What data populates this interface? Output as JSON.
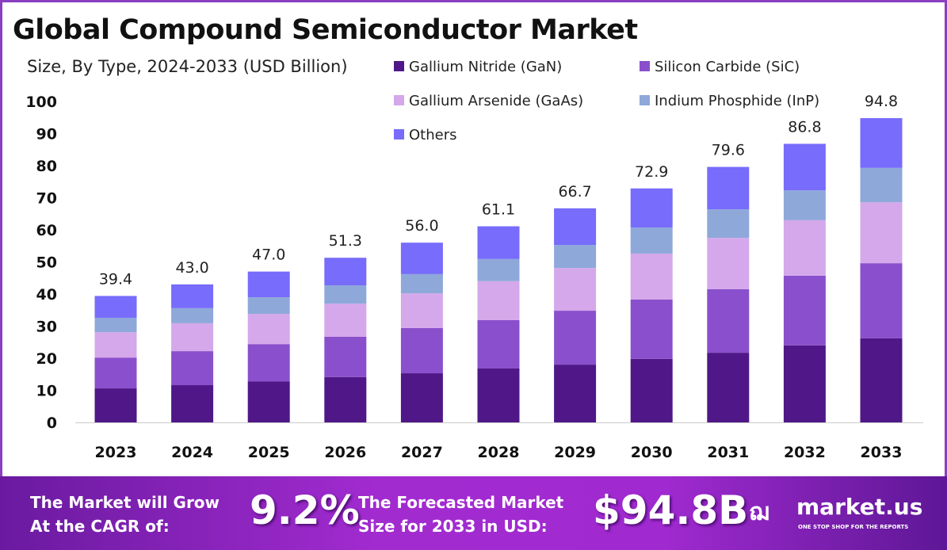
{
  "chart_data": {
    "type": "bar",
    "stacked": true,
    "title": "Global Compound Semiconductor Market",
    "subtitle": "Size, By Type, 2024-2033 (USD Billion)",
    "categories": [
      "2023",
      "2024",
      "2025",
      "2026",
      "2027",
      "2028",
      "2029",
      "2030",
      "2031",
      "2032",
      "2033"
    ],
    "totals": [
      "39.4",
      "43.0",
      "47.0",
      "51.3",
      "56.0",
      "61.1",
      "66.7",
      "72.9",
      "79.6",
      "86.8",
      "94.8"
    ],
    "series": [
      {
        "name": "Gallium Nitride (GaN)",
        "color": "#4f1787",
        "values": [
          10.6,
          11.6,
          12.8,
          14.1,
          15.3,
          16.8,
          18.0,
          19.8,
          21.7,
          24.0,
          26.2
        ]
      },
      {
        "name": "Silicon Carbide (SiC)",
        "color": "#8a4fcc",
        "values": [
          9.6,
          10.6,
          11.6,
          12.6,
          14.1,
          15.1,
          16.8,
          18.5,
          19.8,
          21.7,
          23.4
        ]
      },
      {
        "name": "Gallium Arsenide (GaAs)",
        "color": "#d4a8ea",
        "values": [
          7.9,
          8.7,
          9.4,
          10.3,
          10.8,
          12.1,
          13.3,
          14.3,
          16.0,
          17.3,
          19.0
        ]
      },
      {
        "name": "Indium Phosphide (InP)",
        "color": "#8ea8da",
        "values": [
          4.5,
          4.7,
          5.2,
          5.7,
          6.0,
          6.9,
          7.2,
          8.1,
          8.9,
          9.3,
          10.7
        ]
      },
      {
        "name": "Others",
        "color": "#776cfb",
        "values": [
          6.8,
          7.4,
          8.0,
          8.6,
          9.8,
          10.2,
          11.4,
          12.2,
          13.2,
          14.5,
          15.5
        ]
      }
    ],
    "ylim": [
      0,
      100
    ],
    "yticks": [
      "0",
      "10",
      "20",
      "30",
      "40",
      "50",
      "60",
      "70",
      "80",
      "90",
      "100"
    ],
    "grid": false,
    "legend": "top-right"
  },
  "footer": {
    "cagr_label_1": "The Market will Grow",
    "cagr_label_2": "At the CAGR of:",
    "cagr_value": "9.2%",
    "forecast_label_1": "The Forecasted Market",
    "forecast_label_2": "Size for 2033 in USD:",
    "forecast_value": "$94.8B",
    "brand": "market.us",
    "tagline": "ONE STOP SHOP FOR THE REPORTS"
  }
}
